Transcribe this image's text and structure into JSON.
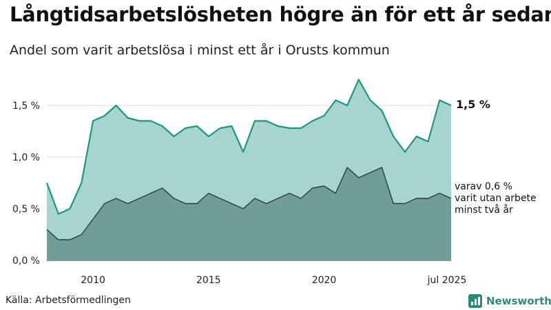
{
  "title": "Långtidsarbetslösheten högre än för ett år sedan",
  "subtitle": "Andel som varit arbetslösa i minst ett år i Orusts kommun",
  "source": "Källa: Arbetsförmedlingen",
  "brand": "Newsworthy",
  "colors": {
    "area_total": "#a6d5cf",
    "line_total": "#1c9583",
    "area_two_year": "#6f9e98",
    "line_two_year": "#2f3a38",
    "brand": "#2f8a7e"
  },
  "annotations": {
    "total": "1,5 %",
    "two_year": [
      "varav 0,6 %",
      "varit utan arbete",
      "minst två år"
    ]
  },
  "chart_data": {
    "type": "area",
    "title": "Långtidsarbetslösheten högre än för ett år sedan",
    "xlabel": "",
    "ylabel": "",
    "x_ticks": [
      "2010",
      "2015",
      "2020",
      "jul 2025"
    ],
    "y_ticks": [
      "0,0 %",
      "0,5 %",
      "1,0 %",
      "1,5 %"
    ],
    "ylim": [
      0,
      1.8
    ],
    "xlim": [
      "2008-01",
      "2025-07"
    ],
    "grid": true,
    "x": [
      "2008-01",
      "2008-07",
      "2009-01",
      "2009-07",
      "2010-01",
      "2010-07",
      "2011-01",
      "2011-07",
      "2012-01",
      "2012-07",
      "2013-01",
      "2013-07",
      "2014-01",
      "2014-07",
      "2015-01",
      "2015-07",
      "2016-01",
      "2016-07",
      "2017-01",
      "2017-07",
      "2018-01",
      "2018-07",
      "2019-01",
      "2019-07",
      "2020-01",
      "2020-07",
      "2021-01",
      "2021-07",
      "2022-01",
      "2022-07",
      "2023-01",
      "2023-07",
      "2024-01",
      "2024-07",
      "2025-01",
      "2025-07"
    ],
    "series": [
      {
        "name": "",
        "values": [
          0.75,
          0.45,
          0.5,
          0.75,
          1.35,
          1.4,
          1.5,
          1.38,
          1.35,
          1.35,
          1.3,
          1.2,
          1.28,
          1.3,
          1.2,
          1.28,
          1.3,
          1.05,
          1.35,
          1.35,
          1.3,
          1.28,
          1.28,
          1.35,
          1.4,
          1.55,
          1.5,
          1.75,
          1.55,
          1.45,
          1.2,
          1.05,
          1.2,
          1.15,
          1.55,
          1.5
        ]
      },
      {
        "name": "",
        "values": [
          0.3,
          0.2,
          0.2,
          0.25,
          0.4,
          0.55,
          0.6,
          0.55,
          0.6,
          0.65,
          0.7,
          0.6,
          0.55,
          0.55,
          0.65,
          0.6,
          0.55,
          0.5,
          0.6,
          0.55,
          0.6,
          0.65,
          0.6,
          0.7,
          0.72,
          0.65,
          0.9,
          0.8,
          0.85,
          0.9,
          0.55,
          0.55,
          0.6,
          0.6,
          0.65,
          0.6
        ]
      }
    ]
  }
}
